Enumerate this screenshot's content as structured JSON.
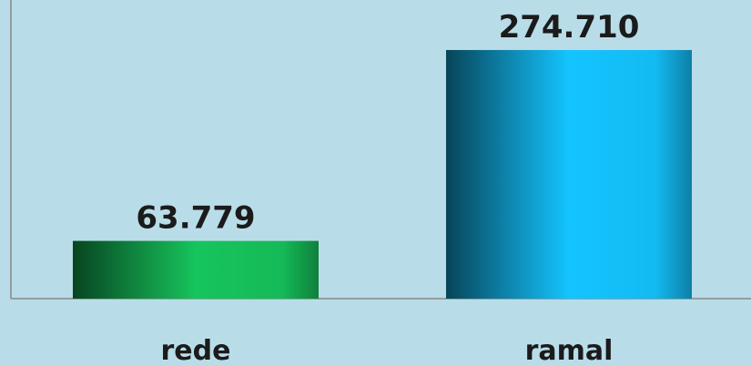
{
  "chart_data": {
    "type": "bar",
    "categories": [
      "rede",
      "ramal"
    ],
    "values": [
      63779,
      274710
    ],
    "value_labels": [
      "63.779",
      "274.710"
    ],
    "colors": [
      "#16c45c",
      "#14c4ff"
    ],
    "ylim": [
      0,
      330000
    ]
  }
}
